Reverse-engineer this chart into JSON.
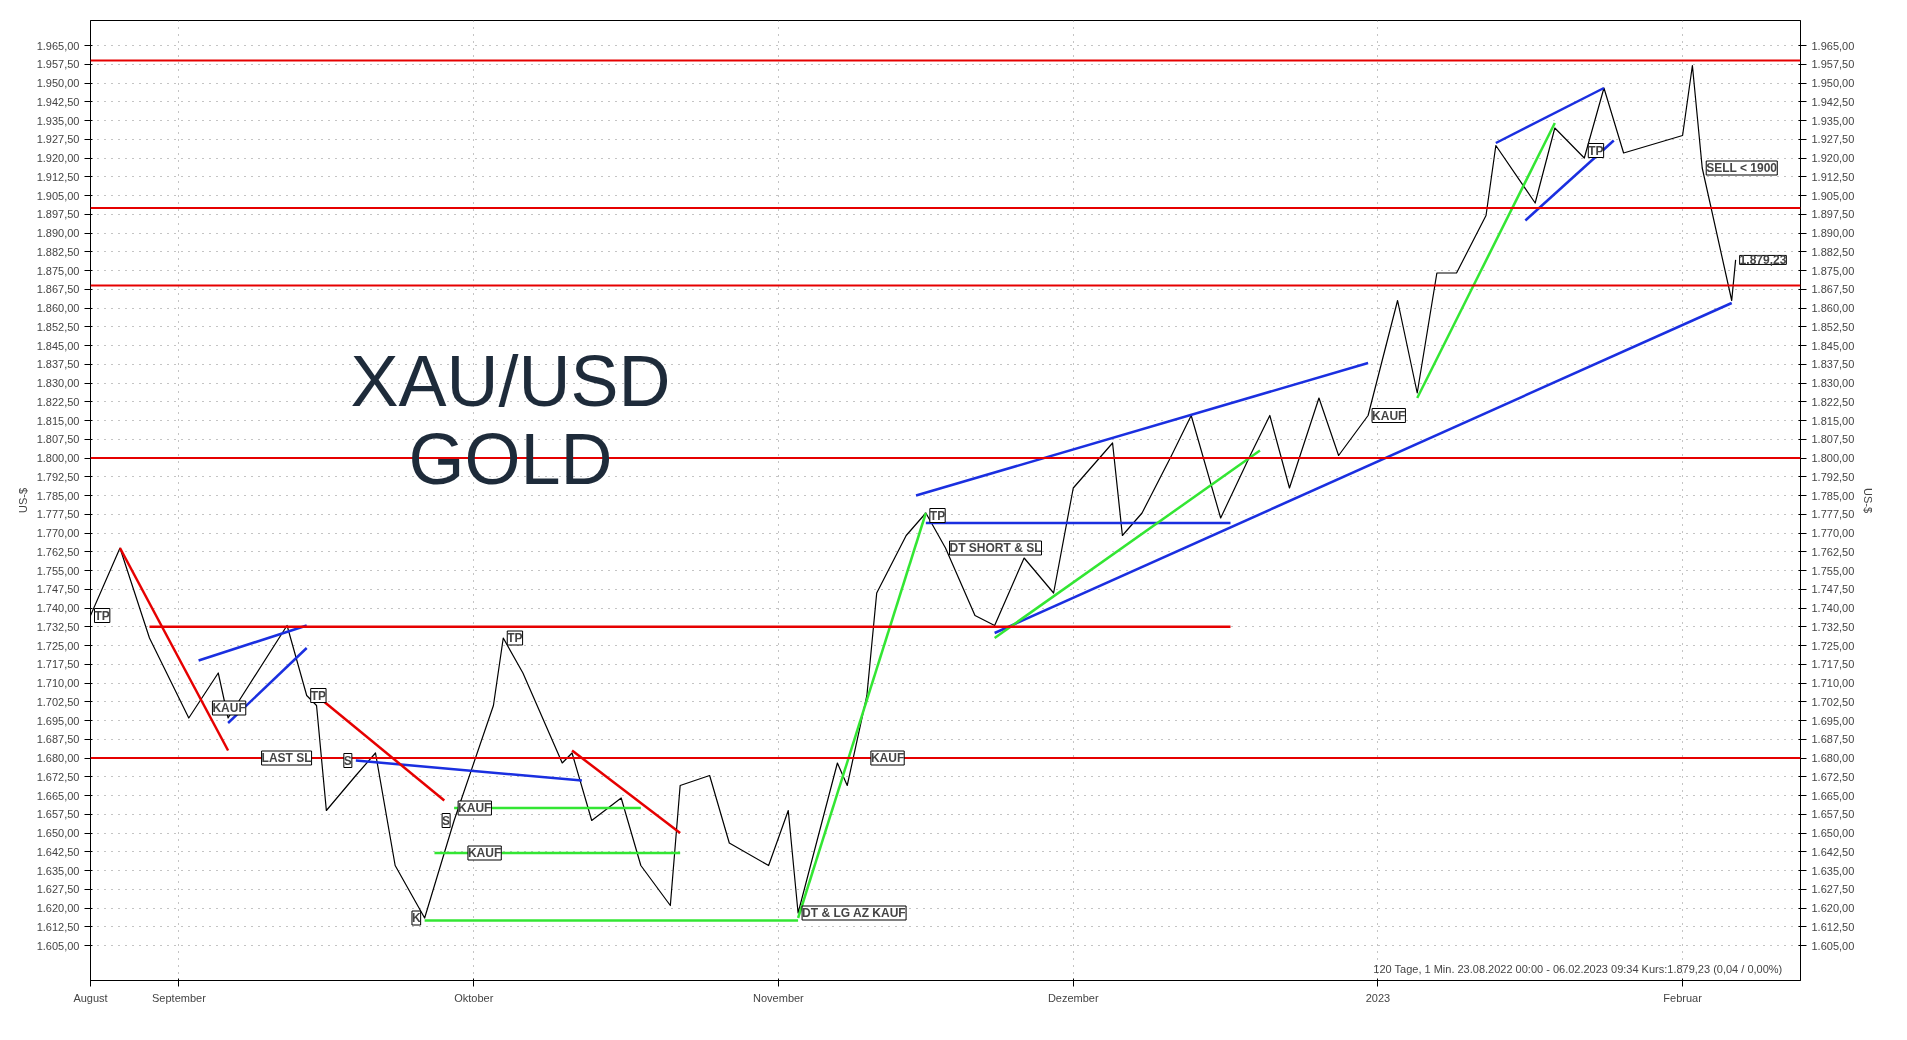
{
  "chart_data": {
    "type": "line",
    "title": "XAU/USD\nGOLD",
    "ylabel": "US-$",
    "y2label": "US-$",
    "x": [
      "2022-08-23",
      "2022-08-26",
      "2022-08-29",
      "2022-09-02",
      "2022-09-05",
      "2022-09-06",
      "2022-09-12",
      "2022-09-14",
      "2022-09-15",
      "2022-09-16",
      "2022-09-19",
      "2022-09-21",
      "2022-09-23",
      "2022-09-26",
      "2022-09-29",
      "2022-10-03",
      "2022-10-04",
      "2022-10-06",
      "2022-10-10",
      "2022-10-11",
      "2022-10-13",
      "2022-10-16",
      "2022-10-18",
      "2022-10-21",
      "2022-10-22",
      "2022-10-25",
      "2022-10-27",
      "2022-10-31",
      "2022-11-02",
      "2022-11-03",
      "2022-11-07",
      "2022-11-08",
      "2022-11-10",
      "2022-11-11",
      "2022-11-14",
      "2022-11-16",
      "2022-11-18",
      "2022-11-21",
      "2022-11-23",
      "2022-11-26",
      "2022-11-29",
      "2022-12-01",
      "2022-12-05",
      "2022-12-06",
      "2022-12-08",
      "2022-12-11",
      "2022-12-13",
      "2022-12-16",
      "2022-12-19",
      "2022-12-21",
      "2022-12-23",
      "2022-12-26",
      "2022-12-28",
      "2022-12-31",
      "2023-01-03",
      "2023-01-05",
      "2023-01-07",
      "2023-01-09",
      "2023-01-12",
      "2023-01-13",
      "2023-01-17",
      "2023-01-19",
      "2023-01-22",
      "2023-01-24",
      "2023-01-26",
      "2023-02-01",
      "2023-02-02",
      "2023-02-03",
      "2023-02-06T00:00",
      "2023-02-06T09:34"
    ],
    "series": [
      {
        "color": "#000000",
        "values": [
          1737,
          1764,
          1728,
          1696,
          1714,
          1696,
          1733,
          1705,
          1701,
          1659,
          1673,
          1682,
          1637,
          1616,
          1655,
          1701,
          1728,
          1714,
          1678,
          1682,
          1655,
          1664,
          1637,
          1621,
          1669,
          1673,
          1646,
          1637,
          1659,
          1618,
          1678,
          1669,
          1705,
          1746,
          1769,
          1778,
          1764,
          1737,
          1733,
          1760,
          1746,
          1788,
          1806,
          1769,
          1778,
          1801,
          1817,
          1776,
          1801,
          1817,
          1788,
          1824,
          1801,
          1817,
          1863,
          1826,
          1874,
          1874,
          1897,
          1925,
          1902,
          1932,
          1920,
          1948,
          1922,
          1929,
          1957,
          1916,
          1863,
          1879.23
        ]
      },
      {
        "color": "#1a2fe0",
        "x": [
          "2022-11-23",
          "2023-02-06"
        ],
        "values": [
          1730,
          1862
        ]
      },
      {
        "color": "#1a2fe0",
        "x": [
          "2022-11-15",
          "2022-12-31"
        ],
        "values": [
          1785,
          1838
        ]
      },
      {
        "color": "#1a2fe0",
        "x": [
          "2023-01-13",
          "2023-01-24"
        ],
        "values": [
          1926,
          1948
        ]
      },
      {
        "color": "#1a2fe0",
        "x": [
          "2023-01-16",
          "2023-01-25"
        ],
        "values": [
          1895,
          1927
        ]
      },
      {
        "color": "#1a2fe0",
        "x": [
          "2022-11-16",
          "2022-12-17"
        ],
        "values": [
          1774,
          1774
        ]
      },
      {
        "color": "#1a2fe0",
        "x": [
          "2022-09-19",
          "2022-10-12"
        ],
        "values": [
          1679,
          1671
        ]
      },
      {
        "color": "#1a2fe0",
        "x": [
          "2022-09-03",
          "2022-09-14"
        ],
        "values": [
          1719,
          1733
        ]
      },
      {
        "color": "#1a2fe0",
        "x": [
          "2022-09-06",
          "2022-09-14"
        ],
        "values": [
          1694,
          1724
        ]
      },
      {
        "color": "#33e633",
        "x": [
          "2023-01-05",
          "2023-01-19"
        ],
        "values": [
          1824,
          1934
        ]
      },
      {
        "color": "#33e633",
        "x": [
          "2022-11-03",
          "2022-11-16"
        ],
        "values": [
          1616,
          1778
        ]
      },
      {
        "color": "#33e633",
        "x": [
          "2022-11-23",
          "2022-12-20"
        ],
        "values": [
          1728,
          1803
        ]
      },
      {
        "color": "#33e633",
        "x": [
          "2022-09-26",
          "2022-11-03"
        ],
        "values": [
          1615,
          1615
        ]
      },
      {
        "color": "#33e633",
        "x": [
          "2022-09-27",
          "2022-10-22"
        ],
        "values": [
          1642,
          1642
        ]
      },
      {
        "color": "#33e633",
        "x": [
          "2022-09-29",
          "2022-10-18"
        ],
        "values": [
          1660,
          1660
        ]
      },
      {
        "color": "#e60000",
        "x": [
          "2022-08-26",
          "2022-09-06"
        ],
        "values": [
          1764,
          1683
        ]
      },
      {
        "color": "#e60000",
        "x": [
          "2022-09-15",
          "2022-09-28"
        ],
        "values": [
          1705,
          1663
        ]
      },
      {
        "color": "#e60000",
        "x": [
          "2022-10-11",
          "2022-10-22"
        ],
        "values": [
          1683,
          1650
        ]
      },
      {
        "color": "#e60000",
        "x": [
          "2022-08-29",
          "2022-12-17"
        ],
        "values": [
          1732.5,
          1732.5
        ]
      }
    ],
    "ref_lines": [
      {
        "axis": "y",
        "value": 1959,
        "color": "#e60000"
      },
      {
        "axis": "y",
        "value": 1900,
        "color": "#e60000"
      },
      {
        "axis": "y",
        "value": 1869,
        "color": "#e60000"
      },
      {
        "axis": "y",
        "value": 1800,
        "color": "#e60000"
      },
      {
        "axis": "y",
        "value": 1680,
        "color": "#e60000"
      }
    ],
    "annotations": [
      {
        "text": "TP",
        "x": "2022-08-23",
        "y": 1737
      },
      {
        "text": "KAUF",
        "x": "2022-09-04",
        "y": 1700
      },
      {
        "text": "TP",
        "x": "2022-09-14",
        "y": 1705
      },
      {
        "text": "LAST SL",
        "x": "2022-09-09",
        "y": 1680
      },
      {
        "text": "S",
        "x": "2022-09-19",
        "y": 1679
      },
      {
        "text": "S",
        "x": "2022-09-29",
        "y": 1655
      },
      {
        "text": "K",
        "x": "2022-09-26",
        "y": 1616
      },
      {
        "text": "KAUF",
        "x": "2022-09-30",
        "y": 1642
      },
      {
        "text": "KAUF",
        "x": "2022-09-29",
        "y": 1660
      },
      {
        "text": "TP",
        "x": "2022-10-04",
        "y": 1728
      },
      {
        "text": "KAUF",
        "x": "2022-11-10",
        "y": 1680
      },
      {
        "text": "DT & LG AZ KAUF",
        "x": "2022-11-03",
        "y": 1618
      },
      {
        "text": "TP",
        "x": "2022-11-16",
        "y": 1777
      },
      {
        "text": "DT SHORT & SL",
        "x": "2022-11-18",
        "y": 1764
      },
      {
        "text": "KAUF",
        "x": "2022-12-31",
        "y": 1817
      },
      {
        "text": "TP",
        "x": "2023-01-22",
        "y": 1923
      },
      {
        "text": "SELL < 1900",
        "x": "2023-02-03",
        "y": 1916
      },
      {
        "text": "1.879,23",
        "x": "2023-02-06T09:34",
        "y": 1879.23
      },
      "120 Tage, 1 Min. 23.08.2022 00:00 - 06.02.2023 09:34  Kurs:1.879,23 (0,04 / 0,00%)"
    ],
    "xlim": [
      "2022-08-23",
      "2023-02-13"
    ],
    "xticks": [
      {
        "value": "2022-08-23",
        "label": "August"
      },
      {
        "value": "2022-09-01",
        "label": "September"
      },
      {
        "value": "2022-10-01",
        "label": "Oktober"
      },
      {
        "value": "2022-11-01",
        "label": "November"
      },
      {
        "value": "2022-12-01",
        "label": "Dezember"
      },
      {
        "value": "2023-01-01",
        "label": "2023"
      },
      {
        "value": "2023-02-01",
        "label": "Februar"
      }
    ],
    "ylim": [
      1591,
      1975
    ],
    "yticks": [
      {
        "value": 1605,
        "label": "1.605,00"
      },
      {
        "value": 1612.5,
        "label": "1.612,50"
      },
      {
        "value": 1620,
        "label": "1.620,00"
      },
      {
        "value": 1627.5,
        "label": "1.627,50"
      },
      {
        "value": 1635,
        "label": "1.635,00"
      },
      {
        "value": 1642.5,
        "label": "1.642,50"
      },
      {
        "value": 1650,
        "label": "1.650,00"
      },
      {
        "value": 1657.5,
        "label": "1.657,50"
      },
      {
        "value": 1665,
        "label": "1.665,00"
      },
      {
        "value": 1672.5,
        "label": "1.672,50"
      },
      {
        "value": 1680,
        "label": "1.680,00"
      },
      {
        "value": 1687.5,
        "label": "1.687,50"
      },
      {
        "value": 1695,
        "label": "1.695,00"
      },
      {
        "value": 1702.5,
        "label": "1.702,50"
      },
      {
        "value": 1710,
        "label": "1.710,00"
      },
      {
        "value": 1717.5,
        "label": "1.717,50"
      },
      {
        "value": 1725,
        "label": "1.725,00"
      },
      {
        "value": 1732.5,
        "label": "1.732,50"
      },
      {
        "value": 1740,
        "label": "1.740,00"
      },
      {
        "value": 1747.5,
        "label": "1.747,50"
      },
      {
        "value": 1755,
        "label": "1.755,00"
      },
      {
        "value": 1762.5,
        "label": "1.762,50"
      },
      {
        "value": 1770,
        "label": "1.770,00"
      },
      {
        "value": 1777.5,
        "label": "1.777,50"
      },
      {
        "value": 1785,
        "label": "1.785,00"
      },
      {
        "value": 1792.5,
        "label": "1.792,50"
      },
      {
        "value": 1800,
        "label": "1.800,00"
      },
      {
        "value": 1807.5,
        "label": "1.807,50"
      },
      {
        "value": 1815,
        "label": "1.815,00"
      },
      {
        "value": 1822.5,
        "label": "1.822,50"
      },
      {
        "value": 1830,
        "label": "1.830,00"
      },
      {
        "value": 1837.5,
        "label": "1.837,50"
      },
      {
        "value": 1845,
        "label": "1.845,00"
      },
      {
        "value": 1852.5,
        "label": "1.852,50"
      },
      {
        "value": 1860,
        "label": "1.860,00"
      },
      {
        "value": 1867.5,
        "label": "1.867,50"
      },
      {
        "value": 1875,
        "label": "1.875,00"
      },
      {
        "value": 1882.5,
        "label": "1.882,50"
      },
      {
        "value": 1890,
        "label": "1.890,00"
      },
      {
        "value": 1897.5,
        "label": "1.897,50"
      },
      {
        "value": 1905,
        "label": "1.905,00"
      },
      {
        "value": 1912.5,
        "label": "1.912,50"
      },
      {
        "value": 1920,
        "label": "1.920,00"
      },
      {
        "value": 1927.5,
        "label": "1.927,50"
      },
      {
        "value": 1935,
        "label": "1.935,00"
      },
      {
        "value": 1942.5,
        "label": "1.942,50"
      },
      {
        "value": 1950,
        "label": "1.950,00"
      },
      {
        "value": 1957.5,
        "label": "1.957,50"
      },
      {
        "value": 1965,
        "label": "1.965,00"
      }
    ],
    "y2lim": [
      1591,
      1975
    ],
    "y2ticks": [
      {
        "value": 1605,
        "label": "1.605,00"
      },
      {
        "value": 1612.5,
        "label": "1.612,50"
      },
      {
        "value": 1620,
        "label": "1.620,00"
      },
      {
        "value": 1627.5,
        "label": "1.627,50"
      },
      {
        "value": 1635,
        "label": "1.635,00"
      },
      {
        "value": 1642.5,
        "label": "1.642,50"
      },
      {
        "value": 1650,
        "label": "1.650,00"
      },
      {
        "value": 1657.5,
        "label": "1.657,50"
      },
      {
        "value": 1665,
        "label": "1.665,00"
      },
      {
        "value": 1672.5,
        "label": "1.672,50"
      },
      {
        "value": 1680,
        "label": "1.680,00"
      },
      {
        "value": 1687.5,
        "label": "1.687,50"
      },
      {
        "value": 1695,
        "label": "1.695,00"
      },
      {
        "value": 1702.5,
        "label": "1.702,50"
      },
      {
        "value": 1710,
        "label": "1.710,00"
      },
      {
        "value": 1717.5,
        "label": "1.717,50"
      },
      {
        "value": 1725,
        "label": "1.725,00"
      },
      {
        "value": 1732.5,
        "label": "1.732,50"
      },
      {
        "value": 1740,
        "label": "1.740,00"
      },
      {
        "value": 1747.5,
        "label": "1.747,50"
      },
      {
        "value": 1755,
        "label": "1.755,00"
      },
      {
        "value": 1762.5,
        "label": "1.762,50"
      },
      {
        "value": 1770,
        "label": "1.770,00"
      },
      {
        "value": 1777.5,
        "label": "1.777,50"
      },
      {
        "value": 1785,
        "label": "1.785,00"
      },
      {
        "value": 1792.5,
        "label": "1.792,50"
      },
      {
        "value": 1800,
        "label": "1.800,00"
      },
      {
        "value": 1807.5,
        "label": "1.807,50"
      },
      {
        "value": 1815,
        "label": "1.815,00"
      },
      {
        "value": 1822.5,
        "label": "1.822,50"
      },
      {
        "value": 1830,
        "label": "1.830,00"
      },
      {
        "value": 1837.5,
        "label": "1.837,50"
      },
      {
        "value": 1845,
        "label": "1.845,00"
      },
      {
        "value": 1852.5,
        "label": "1.852,50"
      },
      {
        "value": 1860,
        "label": "1.860,00"
      },
      {
        "value": 1867.5,
        "label": "1.867,50"
      },
      {
        "value": 1875,
        "label": "1.875,00"
      },
      {
        "value": 1882.5,
        "label": "1.882,50"
      },
      {
        "value": 1890,
        "label": "1.890,00"
      },
      {
        "value": 1897.5,
        "label": "1.897,50"
      },
      {
        "value": 1905,
        "label": "1.905,00"
      },
      {
        "value": 1912.5,
        "label": "1.912,50"
      },
      {
        "value": 1920,
        "label": "1.920,00"
      },
      {
        "value": 1927.5,
        "label": "1.927,50"
      },
      {
        "value": 1935,
        "label": "1.935,00"
      },
      {
        "value": 1942.5,
        "label": "1.942,50"
      },
      {
        "value": 1950,
        "label": "1.950,00"
      },
      {
        "value": 1957.5,
        "label": "1.957,50"
      },
      {
        "value": 1965,
        "label": "1.965,00"
      }
    ],
    "grid": true,
    "line_style": "solid"
  }
}
